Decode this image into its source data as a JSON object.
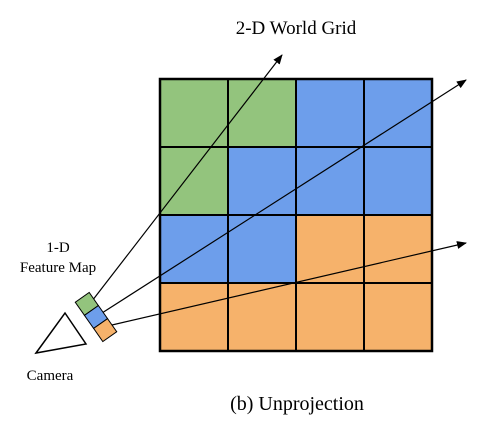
{
  "title": "2-D World Grid",
  "caption": "(b) Unprojection",
  "feature_map": {
    "label_line1": "1-D",
    "label_line2": "Feature Map",
    "cells": [
      "green",
      "blue",
      "orange"
    ]
  },
  "camera_label": "Camera",
  "grid": {
    "rows": [
      [
        "green",
        "green",
        "blue",
        "blue"
      ],
      [
        "green",
        "blue",
        "blue",
        "blue"
      ],
      [
        "blue",
        "blue",
        "orange",
        "orange"
      ],
      [
        "orange",
        "orange",
        "orange",
        "orange"
      ]
    ]
  },
  "colors": {
    "green": "#93c47d",
    "blue": "#6d9eeb",
    "orange": "#f6b26b",
    "line": "#000000"
  }
}
